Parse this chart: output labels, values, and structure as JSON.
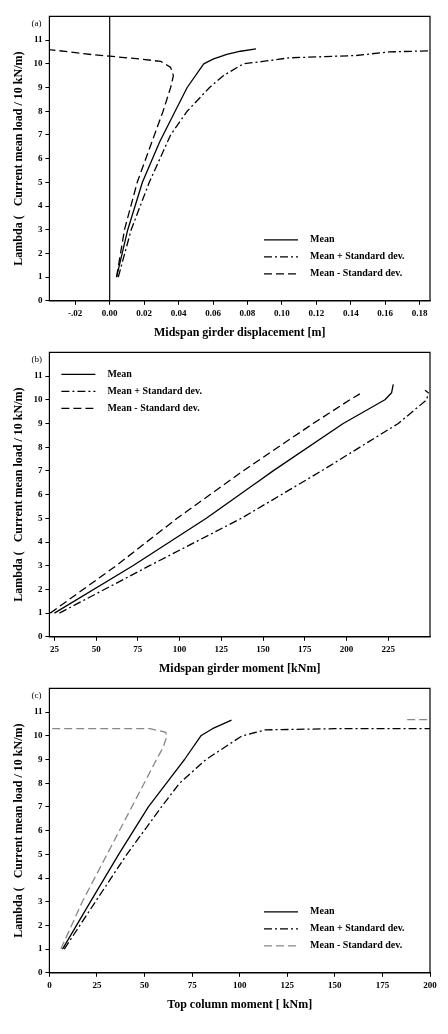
{
  "chart_data": [
    {
      "type": "line",
      "xlabel": "Midspan girder displacement [m]",
      "ylabel": "Lambda (   Current mean load / 10 kN/m)",
      "annotations": [
        "(a)"
      ],
      "xlim": [
        -0.035,
        0.186
      ],
      "ylim": [
        0,
        12
      ],
      "xticks": [
        {
          "value": -0.02,
          "label": "-.02"
        },
        {
          "value": 0,
          "label": "0.00"
        },
        {
          "value": 0.02,
          "label": "0.02"
        },
        {
          "value": 0.04,
          "label": "0.04"
        },
        {
          "value": 0.06,
          "label": "0.06"
        },
        {
          "value": 0.08,
          "label": "0.08"
        },
        {
          "value": 0.1,
          "label": "0.10"
        },
        {
          "value": 0.12,
          "label": "0.12"
        },
        {
          "value": 0.14,
          "label": "0.14"
        },
        {
          "value": 0.16,
          "label": "0.16"
        },
        {
          "value": 0.18,
          "label": "0.18"
        }
      ],
      "yticks": [
        0,
        1,
        2,
        3,
        4,
        5,
        6,
        7,
        8,
        9,
        10,
        11
      ],
      "grid": false,
      "legend": "bottom right",
      "marker": "none",
      "ref_lines": [
        {
          "axis": "x",
          "value": 0,
          "color": "#000000"
        }
      ],
      "series": [
        {
          "name": "Mean",
          "color": "#000000",
          "line_style": "solid",
          "x": [
            0.004,
            0.0105,
            0.019,
            0.029,
            0.038,
            0.045,
            0.0546,
            0.06,
            0.068,
            0.076,
            0.085
          ],
          "values": [
            1,
            3,
            5,
            6.7,
            8,
            9,
            10,
            10.2,
            10.4,
            10.53,
            10.63
          ]
        },
        {
          "name": "Mean + Standard dev.",
          "color": "#000000",
          "line_style": "dashdot",
          "x": [
            0.005,
            0.0125,
            0.023,
            0.0354,
            0.045,
            0.058,
            0.066,
            0.0776,
            0.089,
            0.104,
            0.143,
            0.162,
            0.186
          ],
          "values": [
            1,
            3,
            5,
            7,
            8,
            9,
            9.5,
            10,
            10.1,
            10.25,
            10.35,
            10.5,
            10.55
          ]
        },
        {
          "name": "Mean - Standard dev.",
          "color": "#000000",
          "line_style": "dashed",
          "x": [
            0.004,
            0.0086,
            0.016,
            0.026,
            0.031,
            0.0354,
            0.037,
            0.0354,
            0.0297,
            0.018,
            0,
            -0.0105,
            -0.035
          ],
          "values": [
            1,
            3,
            5,
            7,
            8,
            9,
            9.5,
            9.85,
            10.1,
            10.2,
            10.32,
            10.39,
            10.6
          ]
        }
      ]
    },
    {
      "type": "line",
      "xlabel": "Midspan girder moment [kNm]",
      "ylabel": "Lambda (   Current mean load / 10 kN/m)",
      "annotations": [
        "(b)"
      ],
      "xlim": [
        22,
        250
      ],
      "ylim": [
        0,
        12
      ],
      "xticks": [
        25,
        50,
        75,
        100,
        125,
        150,
        175,
        200,
        225
      ],
      "yticks": [
        0,
        1,
        2,
        3,
        4,
        5,
        6,
        7,
        8,
        9,
        10,
        11
      ],
      "grid": false,
      "legend": "top left",
      "marker": "none",
      "series": [
        {
          "name": "Mean",
          "color": "#000000",
          "line_style": "solid",
          "x": [
            25,
            72,
            116,
            156,
            198,
            223,
            227,
            228
          ],
          "values": [
            1,
            3,
            5,
            7,
            9,
            10,
            10.3,
            10.65
          ]
        },
        {
          "name": "Mean + Standard dev.",
          "color": "#000000",
          "line_style": "dashdot",
          "x": [
            28,
            82,
            137,
            185,
            231,
            248,
            249,
            247
          ],
          "values": [
            1,
            3,
            5,
            7,
            9,
            10,
            10.3,
            10.4
          ]
        },
        {
          "name": "Mean - Standard dev.",
          "color": "#000000",
          "line_style": "dashed",
          "x": [
            22.5,
            62,
            98.5,
            138,
            180,
            202,
            208
          ],
          "values": [
            1,
            3,
            5,
            7,
            9,
            10,
            10.25
          ]
        }
      ]
    },
    {
      "type": "line",
      "xlabel": "Top column moment [ kNm]",
      "ylabel": "Lambda (   Current mean load / 10 kN/m)",
      "annotations": [
        "(c)"
      ],
      "xlim": [
        0,
        200
      ],
      "ylim": [
        0,
        12
      ],
      "xticks": [
        0,
        25,
        50,
        75,
        100,
        125,
        150,
        175,
        200
      ],
      "yticks": [
        0,
        1,
        2,
        3,
        4,
        5,
        6,
        7,
        8,
        9,
        10,
        11
      ],
      "grid": false,
      "legend": "bottom right",
      "marker": "none",
      "series": [
        {
          "name": "Mean",
          "color": "#000000",
          "line_style": "solid",
          "x": [
            6.9,
            21.6,
            36.4,
            52,
            71,
            79.6,
            85.7,
            95.7
          ],
          "values": [
            1,
            3,
            5,
            7,
            9,
            10,
            10.3,
            10.66
          ]
        },
        {
          "name": "Mean + Standard dev.",
          "color": "#000000",
          "line_style": "dashdot",
          "x": [
            7.8,
            24.2,
            40.7,
            58.9,
            68.4,
            82.3,
            101.3,
            113.4,
            150,
            200
          ],
          "values": [
            1,
            3,
            5,
            7,
            8,
            9,
            10,
            10.25,
            10.3,
            10.3
          ]
        },
        {
          "name": "Mean - Standard dev.",
          "color": "#888888",
          "line_style": "dashed",
          "x": [
            6,
            17.3,
            30.3,
            43.3,
            56.3,
            59.7,
            61.8,
            61,
            52.8,
            0,
            null,
            188,
            200
          ],
          "values": [
            1,
            3,
            5,
            7,
            9,
            9.5,
            10,
            10.15,
            10.3,
            10.3,
            null,
            10.68,
            10.68
          ]
        }
      ]
    }
  ]
}
